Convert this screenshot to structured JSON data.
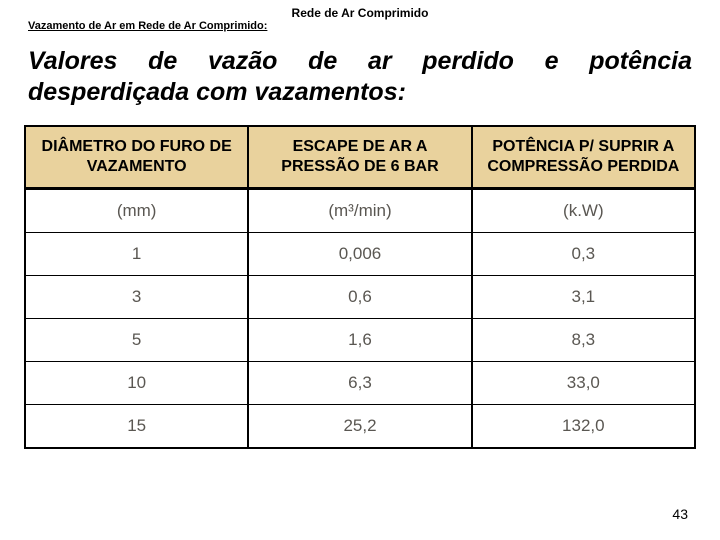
{
  "header": {
    "center": "Rede de Ar Comprimido",
    "sub": "Vazamento de Ar em Rede de Ar Comprimido:"
  },
  "title": "Valores de vazão de ar perdido e potência desperdiçada com vazamentos:",
  "table": {
    "header_bg": "#e9d29d",
    "text_color": "#5a5752",
    "columns": [
      "DIÂMETRO DO FURO DE VAZAMENTO",
      "ESCAPE DE AR A PRESSÃO DE 6 BAR",
      "POTÊNCIA P/ SUPRIR A COMPRESSÃO PERDIDA"
    ],
    "rows": [
      [
        "(mm)",
        "(m³/min)",
        "(k.W)"
      ],
      [
        "1",
        "0,006",
        "0,3"
      ],
      [
        "3",
        "0,6",
        "3,1"
      ],
      [
        "5",
        "1,6",
        "8,3"
      ],
      [
        "10",
        "6,3",
        "33,0"
      ],
      [
        "15",
        "25,2",
        "132,0"
      ]
    ]
  },
  "page_number": "43"
}
